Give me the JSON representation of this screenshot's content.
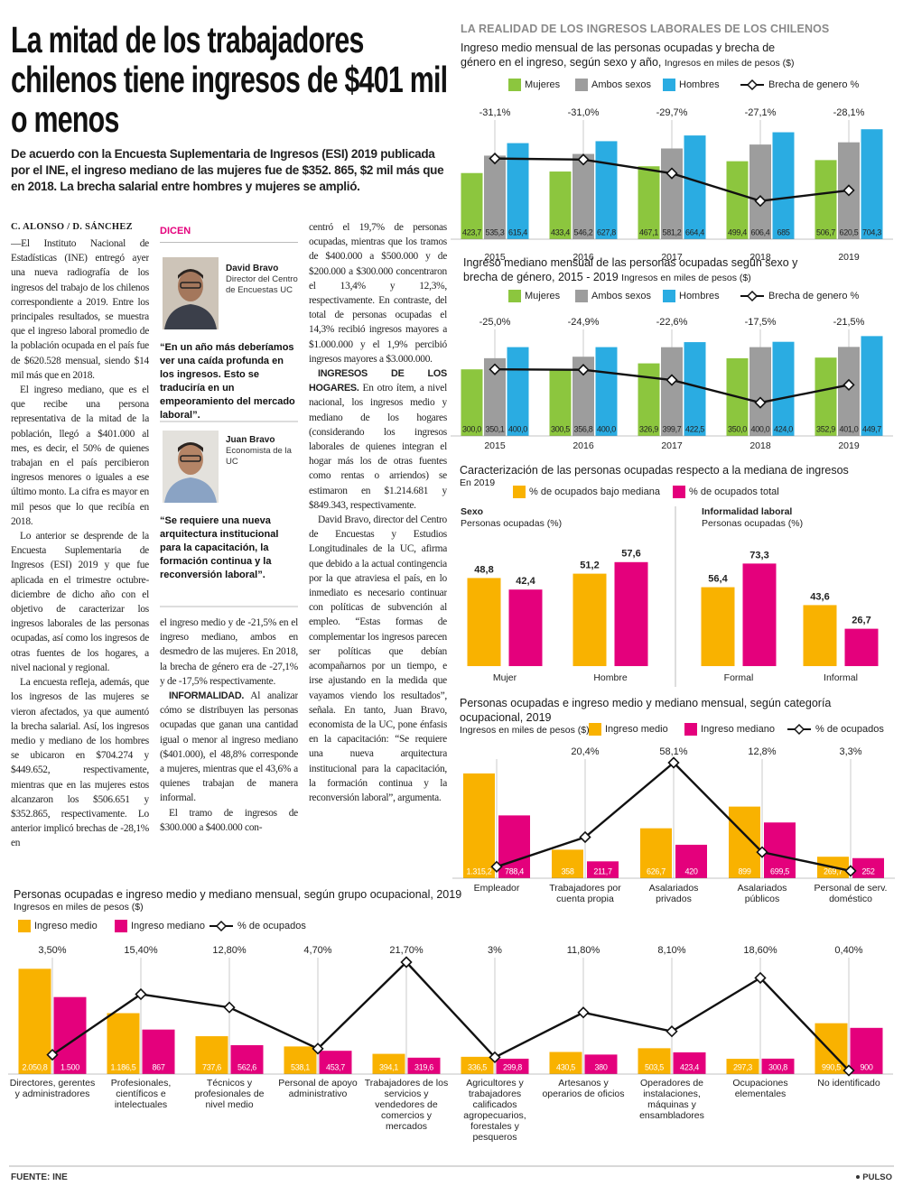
{
  "headline": "La mitad de los trabajadores chilenos tiene ingresos de $401 mil o menos",
  "lead": "De acuerdo con la Encuesta Suplementaria de Ingresos (ESI) 2019 publicada por el INE, el ingreso mediano de las mujeres fue de $352. 865, $2 mil más que en 2018. La brecha salarial entre hombres y mujeres se amplió.",
  "article": {
    "byline": "C. ALONSO / D. SÁNCHEZ",
    "columns": [
      [
        {
          "text": "—El Instituto Nacional de Estadísticas (INE) entregó ayer una nueva radiografía de los ingresos del trabajo de los chilenos correspondiente a 2019. Entre los principales resultados, se muestra que el ingreso laboral promedio de la población ocupada en el país fue de $620.528 mensual, siendo $14 mil más que en 2018."
        },
        {
          "text": "El ingreso mediano, que es el que recibe una persona representativa de la mitad de la población, llegó a $401.000 al mes, es decir, el 50% de quienes trabajan en el país percibieron ingresos menores o iguales a ese último monto. La cifra es mayor en mil pesos que lo que recibía en 2018."
        },
        {
          "text": "Lo anterior se desprende de la Encuesta Suplementaria de Ingresos (ESI) 2019 y que fue aplicada en el trimestre octubre-diciembre de dicho año con el objetivo de caracterizar los ingresos laborales de las personas ocupadas, así como los ingresos de otras fuentes de los hogares, a nivel nacional y regional."
        },
        {
          "text": "La encuesta refleja, además, que los ingresos de las mujeres se vieron afectados, ya que aumentó la brecha salarial. Así, los ingresos medio y mediano de los hombres se ubicaron en $704.274 y $449.652, respectivamente, mientras que en las mujeres estos alcanzaron los $506.651 y $352.865, respectivamente. Lo anterior implicó brechas de -28,1% en"
        }
      ],
      [
        {
          "text": "el ingreso medio y de -21,5% en el ingreso mediano, ambos en desmedro de las mujeres. En 2018, la brecha de género era de -27,1% y de -17,5% respectivamente."
        },
        {
          "heading": "INFORMALIDAD.",
          "text": "Al analizar cómo se distribuyen las personas ocupadas que ganan una cantidad igual o menor al ingreso mediano ($401.000), el 48,8% corresponde a mujeres, mientras que el 43,6% a quienes trabajan de manera informal."
        },
        {
          "text": "El tramo de ingresos de $300.000 a $400.000 con-"
        }
      ],
      [
        {
          "text": "centró el 19,7% de personas ocupadas, mientras que los tramos de $400.000 a $500.000 y de $200.000 a $300.000 concentraron el 13,4% y 12,3%, respectivamente. En contraste, del total de personas ocupadas el 14,3% recibió ingresos mayores a $1.000.000 y el 1,9% percibió ingresos mayores a $3.000.000."
        },
        {
          "heading": "INGRESOS DE LOS HOGARES.",
          "text": "En otro ítem, a nivel nacional, los ingresos medio y mediano de los hogares (considerando los ingresos laborales de quienes integran el hogar más los de otras fuentes como rentas o arriendos) se estimaron en $1.214.681 y $849.343, respectivamente."
        },
        {
          "text": "David Bravo, director del Centro de Encuestas y Estudios Longitudinales de la UC, afirma que debido a la actual contingencia por la que atraviesa el país, en lo inmediato es necesario continuar con políticas de subvención al empleo. “Estas formas de complementar los ingresos parecen ser políticas que debían acompañarnos por un tiempo, e irse ajustando en la medida que vayamos viendo los resultados”, señala. En tanto, Juan Bravo, economista de la UC, pone énfasis en la capacitación: “Se requiere una nueva arquitectura institucional para la capacitación, la formación continua y la reconversión laboral”, argumenta."
        }
      ]
    ]
  },
  "sidebar": {
    "title": "DICEN",
    "people": [
      {
        "name": "David Bravo",
        "role": "Director del Centro de Encuestas UC",
        "quote": "“En un año más deberíamos ver una caída profunda en los ingresos. Esto se traduciría en un empeoramiento del mercado laboral”."
      },
      {
        "name": "Juan Bravo",
        "role": "Economista de la UC",
        "quote": "“Se requiere una nueva arquitectura institucional para la capacitación, la formación continua y la reconversión laboral”."
      }
    ]
  },
  "section_title": "LA REALIDAD DE LOS INGRESOS LABORALES DE LOS CHILENOS",
  "chart_data": [
    {
      "type": "combo",
      "title": "Ingreso medio mensual de las personas ocupadas y brecha de género en el ingreso, según sexo y año,",
      "subtitle": "Ingresos en miles de pesos ($)",
      "categories": [
        "2015",
        "2016",
        "2017",
        "2018",
        "2019"
      ],
      "series": [
        {
          "name": "Mujeres",
          "color": "#8cc63e",
          "values": [
            423.7,
            433.4,
            467.1,
            499.4,
            506.7
          ],
          "value_labels": [
            "423,7",
            "433,4",
            "467,1",
            "499,4",
            "506,7"
          ]
        },
        {
          "name": "Ambos sexos",
          "color": "#9d9d9d",
          "values": [
            535.3,
            546.2,
            581.2,
            606.4,
            620.5
          ],
          "value_labels": [
            "535,3",
            "546,2",
            "581,2",
            "606,4",
            "620,5"
          ]
        },
        {
          "name": "Hombres",
          "color": "#2aace2",
          "values": [
            615.4,
            627.8,
            664.4,
            685,
            704.3
          ],
          "value_labels": [
            "615,4",
            "627,8",
            "664,4",
            "685",
            "704,3"
          ]
        },
        {
          "name": "Brecha de genero %",
          "color": "#111111",
          "type": "line",
          "axis": "y2",
          "values": [
            -31.1,
            -31.0,
            -29.7,
            -27.1,
            -28.1
          ],
          "value_labels": [
            "-31,1%",
            "-31,0%",
            "-29,7%",
            "-27,1%",
            "-28,1%"
          ]
        }
      ],
      "ylim": [
        0,
        850
      ],
      "y2lim": [
        -23.5,
        -36
      ]
    },
    {
      "type": "combo",
      "title": "Ingreso mediano mensual de las personas ocupadas según sexo y brecha de género, 2015 - 2019",
      "subtitle": "Ingresos en miles de pesos ($)",
      "categories": [
        "2015",
        "2016",
        "2017",
        "2018",
        "2019"
      ],
      "series": [
        {
          "name": "Mujeres",
          "color": "#8cc63e",
          "values": [
            300.0,
            300.5,
            326.9,
            350.0,
            352.9
          ],
          "value_labels": [
            "300,0",
            "300,5",
            "326,9",
            "350,0",
            "352,9"
          ]
        },
        {
          "name": "Ambos sexos",
          "color": "#9d9d9d",
          "values": [
            350.1,
            356.8,
            399.7,
            400.0,
            401.0
          ],
          "value_labels": [
            "350,1",
            "356,8",
            "399,7",
            "400,0",
            "401,0"
          ]
        },
        {
          "name": "Hombres",
          "color": "#2aace2",
          "values": [
            400.0,
            400.0,
            422.5,
            424.0,
            449.7
          ],
          "value_labels": [
            "400,0",
            "400,0",
            "422,5",
            "424,0",
            "449,7"
          ]
        },
        {
          "name": "Brecha de genero %",
          "color": "#111111",
          "type": "line",
          "axis": "y2",
          "values": [
            -25.0,
            -24.9,
            -22.6,
            -17.5,
            -21.5
          ],
          "value_labels": [
            "-25,0%",
            "-24,9%",
            "-22,6%",
            "-17,5%",
            "-21,5%"
          ]
        }
      ],
      "ylim": [
        0,
        500
      ],
      "y2lim": [
        -10,
        -35
      ]
    },
    {
      "type": "bar",
      "title": "Caracterización de las personas ocupadas respecto a la mediana de ingresos",
      "subtitle": "En 2019",
      "series": [
        {
          "name": "% de ocupados bajo mediana",
          "color": "#f9b200"
        },
        {
          "name": "% de ocupados total",
          "color": "#e4007c"
        }
      ],
      "panels": [
        {
          "title": "Sexo",
          "subtitle": "Personas ocupadas (%)",
          "categories": [
            "Mujer",
            "Hombre"
          ],
          "ylim": [
            0,
            62
          ],
          "series": [
            {
              "values": [
                48.8,
                51.2
              ],
              "value_labels": [
                "48,8",
                "51,2"
              ]
            },
            {
              "values": [
                42.4,
                57.6
              ],
              "value_labels": [
                "42,4",
                "57,6"
              ]
            }
          ]
        },
        {
          "title": "Informalidad laboral",
          "subtitle": "Personas ocupadas (%)",
          "categories": [
            "Formal",
            "Informal"
          ],
          "ylim": [
            0,
            80
          ],
          "series": [
            {
              "values": [
                56.4,
                43.6
              ],
              "value_labels": [
                "56,4",
                "43,6"
              ]
            },
            {
              "values": [
                73.3,
                26.7
              ],
              "value_labels": [
                "73,3",
                "26,7"
              ]
            }
          ]
        }
      ]
    },
    {
      "type": "combo",
      "title": "Personas ocupadas e ingreso medio y mediano mensual, según categoría ocupacional, 2019",
      "subtitle": "Ingresos en miles de pesos ($)",
      "categories": [
        "Empleador",
        "Trabajadores por cuenta propia",
        "Asalariados privados",
        "Asalariados públicos",
        "Personal de serv. doméstico"
      ],
      "series": [
        {
          "name": "Ingreso medio",
          "color": "#f9b200",
          "values": [
            1315.2,
            358,
            626.7,
            899,
            269.7
          ],
          "value_labels": [
            "1.315,2",
            "358",
            "626,7",
            "899",
            "269,7"
          ]
        },
        {
          "name": "Ingreso mediano",
          "color": "#e4007c",
          "values": [
            788.4,
            211.7,
            420,
            699.5,
            252
          ],
          "value_labels": [
            "788,4",
            "211,7",
            "420",
            "699,5",
            "252"
          ]
        },
        {
          "name": "% de ocupados",
          "color": "#111111",
          "type": "line",
          "axis": "y2",
          "values": [
            5.4,
            20.4,
            58.1,
            12.8,
            3.3
          ],
          "value_labels": [
            null,
            "20,4%",
            "58,1%",
            "12,8%",
            "3,3%"
          ]
        }
      ],
      "ylim": [
        0,
        1450
      ],
      "y2lim": [
        -0.4,
        58.1
      ]
    },
    {
      "type": "combo",
      "title": "Personas ocupadas e ingreso medio y mediano mensual, según grupo ocupacional, 2019",
      "subtitle": "Ingresos en miles de pesos ($)",
      "categories": [
        "Directores, gerentes y administradores",
        "Profesionales, científicos e intelectuales",
        "Técnicos y profesionales de nivel medio",
        "Personal de apoyo administrativo",
        "Trabajadores de los servicios y vendedores de comercios y mercados",
        "Agricultores y trabajadores calificados agropecuarios, forestales y pesqueros",
        "Artesanos y operarios de oficios",
        "Operadores de instalaciones, máquinas y ensambladores",
        "Ocupaciones elementales",
        "No identificado"
      ],
      "series": [
        {
          "name": "Ingreso medio",
          "color": "#f9b200",
          "values": [
            2050.8,
            1186.5,
            737.6,
            538.1,
            394.1,
            336.5,
            430.5,
            503.5,
            297.3,
            990.5
          ],
          "value_labels": [
            "2.050,8",
            "1.186,5",
            "737,6",
            "538,1",
            "394,1",
            "336,5",
            "430,5",
            "503,5",
            "297,3",
            "990,5"
          ]
        },
        {
          "name": "Ingreso mediano",
          "color": "#e4007c",
          "values": [
            1500,
            867,
            562.6,
            453.7,
            319.6,
            299.8,
            380,
            423.4,
            300.8,
            900
          ],
          "value_labels": [
            "1.500",
            "867",
            "562,6",
            "453,7",
            "319,6",
            "299,8",
            "380",
            "423,4",
            "300,8",
            "900"
          ]
        },
        {
          "name": "% de ocupados",
          "color": "#111111",
          "type": "line",
          "axis": "y2",
          "values": [
            3.5,
            15.4,
            12.8,
            4.7,
            21.7,
            3,
            11.8,
            8.1,
            18.6,
            0.4
          ],
          "value_labels": [
            "3,50%",
            "15,40%",
            "12,80%",
            "4,70%",
            "21,70%",
            "3%",
            "11,80%",
            "8,10%",
            "18,60%",
            "0,40%"
          ]
        }
      ],
      "ylim": [
        0,
        2180
      ],
      "y2lim": [
        -0.3,
        21.7
      ]
    }
  ],
  "footer": {
    "source": "FUENTE: INE",
    "brand": "PULSO"
  }
}
